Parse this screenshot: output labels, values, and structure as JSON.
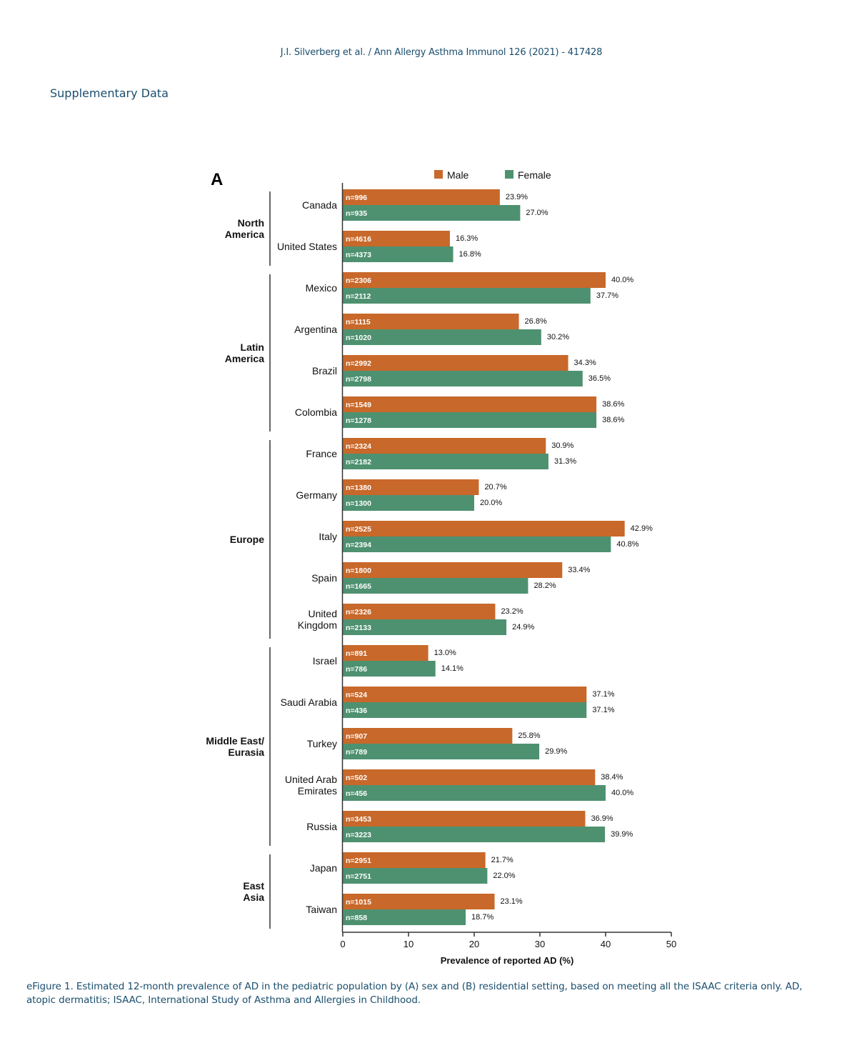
{
  "page": {
    "running_head": "J.I. Silverberg et al. / Ann Allergy Asthma Immunol 126 (2021) - 417428",
    "section_title": "Supplementary Data",
    "caption": "eFigure 1.  Estimated 12-month prevalence of AD in the pediatric population by (A) sex and (B) residential setting, based on meeting all the ISAAC criteria only. AD, atopic dermatitis; ISAAC, International Study of Asthma and Allergies in Childhood."
  },
  "chart_data": {
    "type": "bar",
    "orientation": "horizontal",
    "panel_label": "A",
    "title": "",
    "xlabel": "Prevalence of reported AD (%)",
    "ylabel": "",
    "xlim": [
      0,
      50
    ],
    "xticks": [
      0,
      10,
      20,
      30,
      40,
      50
    ],
    "grid": false,
    "legend": {
      "position": "top-right",
      "entries": [
        "Male",
        "Female"
      ]
    },
    "colors": {
      "Male": "#c8682a",
      "Female": "#4e9170"
    },
    "categories": [
      "Canada",
      "United States",
      "Mexico",
      "Argentina",
      "Brazil",
      "Colombia",
      "France",
      "Germany",
      "Italy",
      "Spain",
      "United Kingdom",
      "Israel",
      "Saudi Arabia",
      "Turkey",
      "United Arab Emirates",
      "Russia",
      "Japan",
      "Taiwan"
    ],
    "category_labels": [
      [
        "Canada"
      ],
      [
        "United States"
      ],
      [
        "Mexico"
      ],
      [
        "Argentina"
      ],
      [
        "Brazil"
      ],
      [
        "Colombia"
      ],
      [
        "France"
      ],
      [
        "Germany"
      ],
      [
        "Italy"
      ],
      [
        "Spain"
      ],
      [
        "United",
        "Kingdom"
      ],
      [
        "Israel"
      ],
      [
        "Saudi Arabia"
      ],
      [
        "Turkey"
      ],
      [
        "United Arab",
        "Emirates"
      ],
      [
        "Russia"
      ],
      [
        "Japan"
      ],
      [
        "Taiwan"
      ]
    ],
    "regions": [
      {
        "name": [
          "North",
          "America"
        ],
        "start": 0,
        "end": 1
      },
      {
        "name": [
          "Latin",
          "America"
        ],
        "start": 2,
        "end": 5
      },
      {
        "name": [
          "Europe"
        ],
        "start": 6,
        "end": 10
      },
      {
        "name": [
          "Middle East/",
          "Eurasia"
        ],
        "start": 11,
        "end": 15
      },
      {
        "name": [
          "East",
          "Asia"
        ],
        "start": 16,
        "end": 17
      }
    ],
    "series": [
      {
        "name": "Male",
        "values": [
          23.9,
          16.3,
          40.0,
          26.8,
          34.3,
          38.6,
          30.9,
          20.7,
          42.9,
          33.4,
          23.2,
          13.0,
          37.1,
          25.8,
          38.4,
          36.9,
          21.7,
          23.1
        ],
        "value_labels": [
          "23.9%",
          "16.3%",
          "40.0%",
          "26.8%",
          "34.3%",
          "38.6%",
          "30.9%",
          "20.7%",
          "42.9%",
          "33.4%",
          "23.2%",
          "13.0%",
          "37.1%",
          "25.8%",
          "38.4%",
          "36.9%",
          "21.7%",
          "23.1%"
        ],
        "n": [
          "n=996",
          "n=4616",
          "n=2306",
          "n=1115",
          "n=2992",
          "n=1549",
          "n=2324",
          "n=1380",
          "n=2525",
          "n=1800",
          "n=2326",
          "n=891",
          "n=524",
          "n=907",
          "n=502",
          "n=3453",
          "n=2951",
          "n=1015"
        ]
      },
      {
        "name": "Female",
        "values": [
          27.0,
          16.8,
          37.7,
          30.2,
          36.5,
          38.6,
          31.3,
          20.0,
          40.8,
          28.2,
          24.9,
          14.1,
          37.1,
          29.9,
          40.0,
          39.9,
          22.0,
          18.7
        ],
        "value_labels": [
          "27.0%",
          "16.8%",
          "37.7%",
          "30.2%",
          "36.5%",
          "38.6%",
          "31.3%",
          "20.0%",
          "40.8%",
          "28.2%",
          "24.9%",
          "14.1%",
          "37.1%",
          "29.9%",
          "40.0%",
          "39.9%",
          "22.0%",
          "18.7%"
        ],
        "n": [
          "n=935",
          "n=4373",
          "n=2112",
          "n=1020",
          "n=2798",
          "n=1278",
          "n=2182",
          "n=1300",
          "n=2394",
          "n=1665",
          "n=2133",
          "n=786",
          "n=436",
          "n=789",
          "n=456",
          "n=3223",
          "n=2751",
          "n=858"
        ]
      }
    ]
  }
}
